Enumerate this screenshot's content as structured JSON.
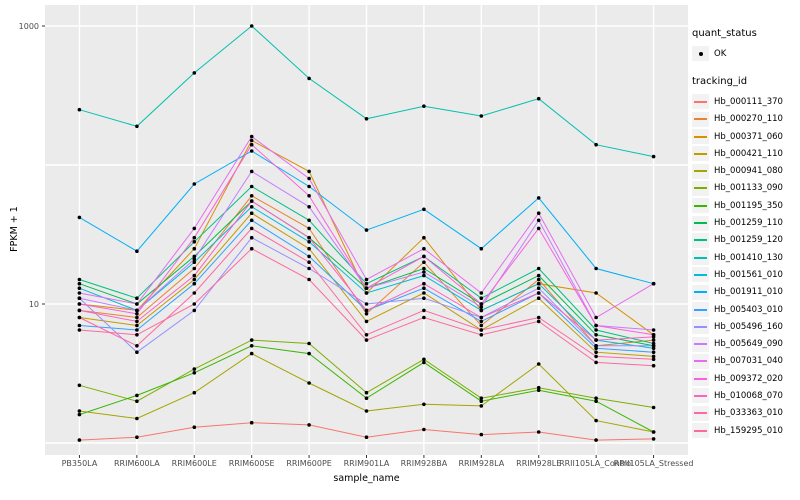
{
  "chart_data": {
    "type": "line",
    "title": "",
    "xlabel": "sample_name",
    "ylabel": "FPKM + 1",
    "yscale": "log10",
    "ylim": [
      1,
      1400
    ],
    "grid": "on",
    "legend_position": "right",
    "panel_bg": "#EBEBEB",
    "grid_color": "#FFFFFF",
    "tick_color": "#333333",
    "tick_label_color": "#4D4D4D",
    "point_color": "#000000",
    "grid_major_values": [
      1,
      10,
      100,
      1000
    ],
    "yticks": [
      {
        "value": 1000,
        "label": "1000"
      },
      {
        "value": 10,
        "label": "10"
      }
    ],
    "categories": [
      "PB350LA",
      "RRIM600LA",
      "RRIM600LE",
      "RRIM600SE",
      "RRIM600PE",
      "RRIM901LA",
      "RRIM928BA",
      "RRIM928LA",
      "RRIM928LE",
      "RRII105LA_Control",
      "RRII105LA_Stressed"
    ],
    "series": [
      {
        "name": "Hb_000111_370",
        "color": "#F8766D",
        "values": [
          1.05,
          1.1,
          1.3,
          1.4,
          1.35,
          1.1,
          1.25,
          1.15,
          1.2,
          1.05,
          1.07
        ]
      },
      {
        "name": "Hb_000270_110",
        "color": "#EA8331",
        "values": [
          9,
          8,
          18,
          60,
          35,
          8.5,
          20,
          7,
          15,
          5,
          5.5
        ]
      },
      {
        "name": "Hb_000371_060",
        "color": "#D89000",
        "values": [
          10,
          9,
          25,
          150,
          90,
          12,
          30,
          9,
          14,
          12,
          6
        ]
      },
      {
        "name": "Hb_000421_110",
        "color": "#C09B00",
        "values": [
          8,
          7,
          15,
          45,
          25,
          7.5,
          12,
          6.5,
          11,
          4.5,
          4.2
        ]
      },
      {
        "name": "Hb_000941_080",
        "color": "#A3A500",
        "values": [
          1.7,
          1.5,
          2.3,
          4.4,
          2.7,
          1.7,
          1.9,
          1.85,
          3.7,
          1.45,
          1.2
        ]
      },
      {
        "name": "Hb_001133_090",
        "color": "#7CAE00",
        "values": [
          2.6,
          2.0,
          3.4,
          5.5,
          5.2,
          2.3,
          4.0,
          2.1,
          2.5,
          2.1,
          1.8
        ]
      },
      {
        "name": "Hb_001195_350",
        "color": "#39B600",
        "values": [
          1.6,
          2.2,
          3.2,
          5.0,
          4.4,
          2.1,
          3.8,
          2.0,
          2.4,
          2.0,
          1.2
        ]
      },
      {
        "name": "Hb_001259_110",
        "color": "#00BB4E",
        "values": [
          14,
          10,
          22,
          55,
          30,
          13,
          18,
          10,
          16,
          6,
          5
        ]
      },
      {
        "name": "Hb_001259_120",
        "color": "#00C081",
        "values": [
          15,
          11,
          28,
          70,
          40,
          14,
          22,
          11,
          18,
          6.5,
          5.2
        ]
      },
      {
        "name": "Hb_001410_130",
        "color": "#00C0AF",
        "values": [
          250,
          190,
          460,
          1000,
          420,
          215,
          265,
          225,
          300,
          140,
          115
        ]
      },
      {
        "name": "Hb_001561_010",
        "color": "#00BCD8",
        "values": [
          13,
          9,
          20,
          50,
          28,
          12,
          16,
          9,
          14,
          5.5,
          4.8
        ]
      },
      {
        "name": "Hb_001911_010",
        "color": "#00B0F6",
        "values": [
          42,
          24,
          73,
          126,
          70,
          34,
          48,
          25,
          58,
          18,
          14
        ]
      },
      {
        "name": "Hb_005403_010",
        "color": "#35A2FF",
        "values": [
          7,
          6.5,
          14,
          40,
          22,
          9,
          13,
          7.5,
          12,
          4.8,
          4.5
        ]
      },
      {
        "name": "Hb_005496_160",
        "color": "#9590FF",
        "values": [
          11,
          4.5,
          9,
          30,
          18,
          10,
          11,
          8,
          13,
          5,
          5
        ]
      },
      {
        "name": "Hb_005649_090",
        "color": "#C77CFF",
        "values": [
          11,
          9,
          21,
          90,
          50,
          13,
          17,
          9.5,
          40,
          7,
          6.5
        ]
      },
      {
        "name": "Hb_007031_040",
        "color": "#E76BF3",
        "values": [
          12,
          10,
          35,
          160,
          80,
          15,
          25,
          12,
          45,
          8,
          14
        ]
      },
      {
        "name": "Hb_009372_020",
        "color": "#FA62DB",
        "values": [
          10,
          8.5,
          30,
          140,
          60,
          13,
          22,
          10,
          35,
          7,
          6
        ]
      },
      {
        "name": "Hb_010068_070",
        "color": "#FF61C3",
        "values": [
          9,
          7.5,
          16,
          55,
          30,
          9,
          14,
          8,
          12,
          5.5,
          5.8
        ]
      },
      {
        "name": "Hb_033363_010",
        "color": "#FF67A4",
        "values": [
          8,
          5,
          12,
          35,
          20,
          6,
          9,
          6.5,
          8,
          4.2,
          4
        ]
      },
      {
        "name": "Hb_159295_010",
        "color": "#FF689E",
        "values": [
          6.5,
          6,
          10,
          25,
          15,
          5.5,
          8,
          6,
          7.5,
          3.8,
          3.6
        ]
      }
    ]
  },
  "legend": {
    "quant_status": {
      "title": "quant_status",
      "items": [
        {
          "label": "OK",
          "marker": "point"
        }
      ]
    },
    "tracking": {
      "title": "tracking_id"
    }
  }
}
